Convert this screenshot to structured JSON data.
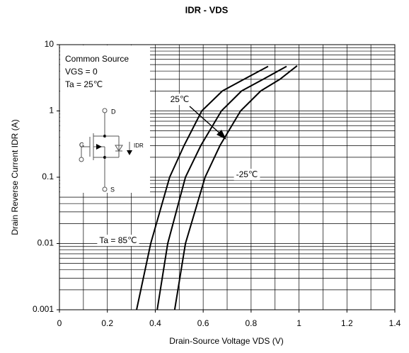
{
  "chart_data": {
    "type": "line",
    "title": "IDR - VDS",
    "x_label": "Drain-Source Voltage VDS (V)",
    "y_label": "Drain Reverse Current   IDR (A)",
    "log_y": true,
    "grid": true,
    "color": "#000000",
    "xlim": [
      0,
      1.4
    ],
    "xticks": [
      0,
      0.2,
      0.4,
      0.6,
      0.8,
      1,
      1.2,
      1.4
    ],
    "xgrid": [
      0.1,
      0.2,
      0.3,
      0.4,
      0.5,
      0.6,
      0.7,
      0.8,
      0.9,
      1,
      1.1,
      1.2,
      1.3
    ],
    "ylim": [
      0.001,
      10
    ],
    "yticks": [
      0.001,
      0.01,
      0.1,
      1,
      10
    ],
    "ygrid": [
      0.002,
      0.003,
      0.004,
      0.005,
      0.006,
      0.007,
      0.008,
      0.009,
      0.01,
      0.02,
      0.03,
      0.04,
      0.05,
      0.06,
      0.07,
      0.08,
      0.09,
      0.1,
      0.2,
      0.3,
      0.4,
      0.5,
      0.6,
      0.7,
      0.8,
      0.9,
      1,
      2,
      3,
      4,
      5,
      6,
      7,
      8,
      9
    ],
    "inset_text": [
      "Common Source",
      "VGS = 0",
      "Ta = 25℃"
    ],
    "circuit_labels": {
      "drain": "D",
      "gate": "G",
      "source": "S",
      "current": "IDR"
    },
    "series": [
      {
        "name": "Ta = 85℃",
        "color": "#000000",
        "x": [
          0.322,
          0.381,
          0.46,
          0.52,
          0.594,
          0.68,
          0.77,
          0.871
        ],
        "values": [
          0.001,
          0.01,
          0.1,
          0.3,
          1,
          2,
          3,
          4.7
        ]
      },
      {
        "name": "25℃",
        "color": "#000000",
        "x": [
          0.408,
          0.452,
          0.526,
          0.59,
          0.676,
          0.76,
          0.85,
          0.948
        ],
        "values": [
          0.001,
          0.01,
          0.1,
          0.3,
          1,
          2,
          3,
          4.7
        ]
      },
      {
        "name": "-25℃",
        "color": "#000000",
        "x": [
          0.481,
          0.526,
          0.608,
          0.67,
          0.756,
          0.84,
          0.92,
          0.992
        ],
        "values": [
          0.001,
          0.01,
          0.1,
          0.3,
          1,
          2,
          3,
          4.8
        ]
      }
    ]
  }
}
